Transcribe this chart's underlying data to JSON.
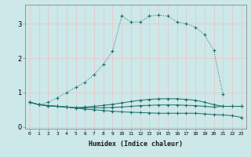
{
  "xlabel": "Humidex (Indice chaleur)",
  "background_color": "#cce8e8",
  "grid_color": "#e8c8c8",
  "line_color": "#1a6e6a",
  "x_values": [
    0,
    1,
    2,
    3,
    4,
    5,
    6,
    7,
    8,
    9,
    10,
    11,
    12,
    13,
    14,
    15,
    16,
    17,
    18,
    19,
    20,
    21,
    22,
    23
  ],
  "series": [
    {
      "y": [
        0.72,
        0.65,
        0.62,
        0.6,
        0.58,
        0.55,
        0.52,
        0.5,
        0.48,
        0.46,
        0.44,
        0.43,
        0.42,
        0.41,
        0.4,
        0.4,
        0.4,
        0.4,
        0.4,
        0.38,
        0.36,
        0.35,
        0.33,
        0.28
      ],
      "linestyle": "-",
      "marker": "+"
    },
    {
      "y": [
        0.72,
        0.65,
        0.62,
        0.6,
        0.58,
        0.56,
        0.56,
        0.56,
        0.56,
        0.57,
        0.58,
        0.6,
        0.62,
        0.63,
        0.64,
        0.64,
        0.64,
        0.63,
        0.62,
        0.6,
        0.58,
        0.6,
        0.6,
        0.6
      ],
      "linestyle": "-",
      "marker": "+"
    },
    {
      "y": [
        0.72,
        0.65,
        0.62,
        0.6,
        0.58,
        0.56,
        0.58,
        0.6,
        0.63,
        0.66,
        0.7,
        0.74,
        0.78,
        0.8,
        0.82,
        0.82,
        0.82,
        0.8,
        0.78,
        0.72,
        0.65,
        0.6,
        0.6,
        0.6
      ],
      "linestyle": "-",
      "marker": "+"
    },
    {
      "y": [
        0.72,
        0.65,
        0.72,
        0.85,
        1.0,
        1.15,
        1.3,
        1.52,
        1.82,
        2.2,
        3.22,
        3.05,
        3.05,
        3.22,
        3.25,
        3.22,
        3.05,
        3.0,
        2.9,
        2.68,
        2.22,
        0.95,
        null,
        null
      ],
      "linestyle": ":",
      "marker": "+"
    }
  ],
  "ylim": [
    -0.05,
    3.55
  ],
  "yticks": [
    0,
    1,
    2,
    3
  ],
  "xlim": [
    -0.5,
    23.5
  ],
  "xticks": [
    0,
    1,
    2,
    3,
    4,
    5,
    6,
    7,
    8,
    9,
    10,
    11,
    12,
    13,
    14,
    15,
    16,
    17,
    18,
    19,
    20,
    21,
    22,
    23
  ]
}
